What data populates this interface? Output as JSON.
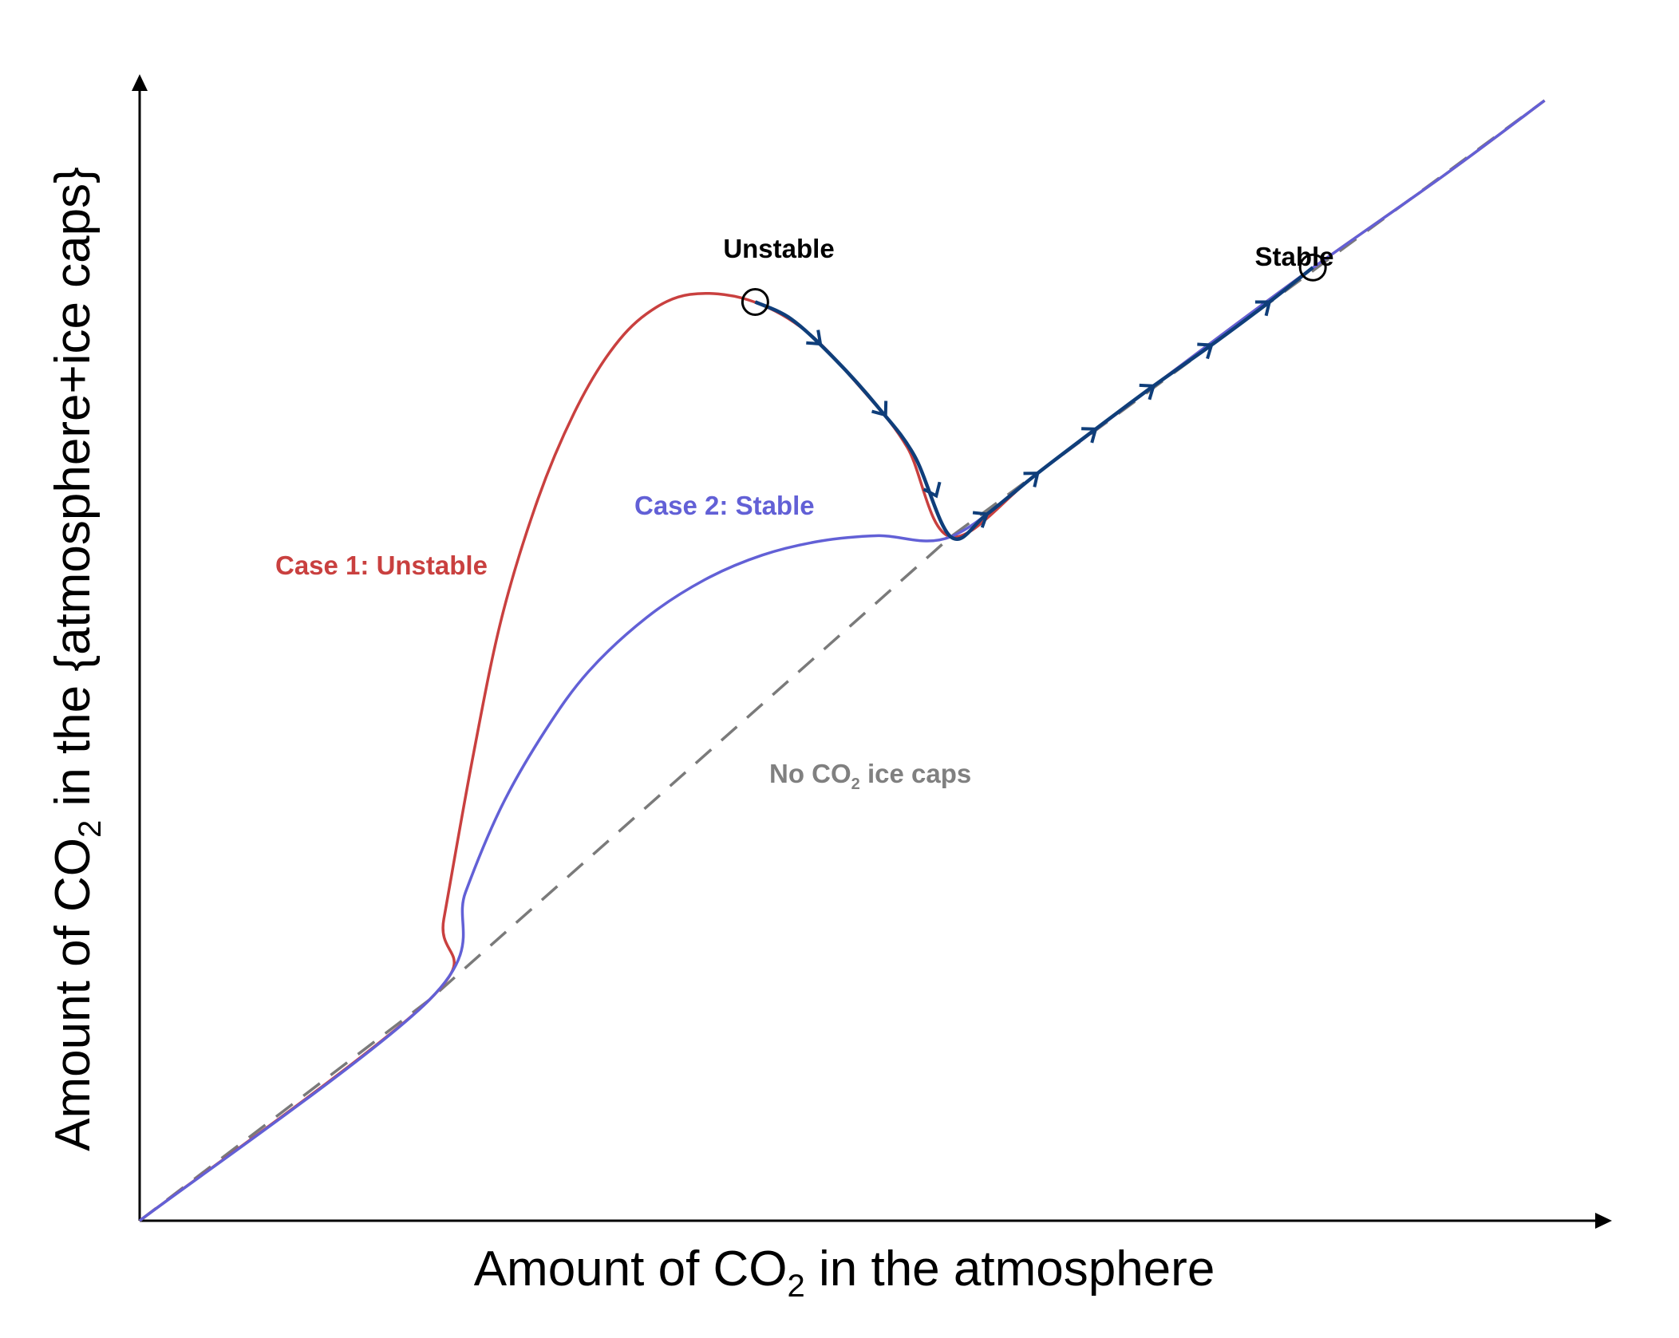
{
  "chart_data": {
    "type": "line",
    "title": "",
    "xlabel": {
      "pre": "Amount of CO",
      "sub": "2",
      "post": " in the atmosphere"
    },
    "ylabel": {
      "pre": "Amount of CO",
      "sub": "2",
      "post": " in the {atmosphere+ice caps}"
    },
    "xlim": [
      0,
      100
    ],
    "ylim": [
      0,
      100
    ],
    "grid": false,
    "series": [
      {
        "name": "Case 1: Unstable",
        "color": "#c9403f",
        "style": "solid",
        "points": [
          [
            0,
            0
          ],
          [
            20,
            20.5
          ],
          [
            21,
            28
          ],
          [
            23,
            43
          ],
          [
            25,
            56
          ],
          [
            27.5,
            67
          ],
          [
            30,
            75
          ],
          [
            32.5,
            80.7
          ],
          [
            35,
            84.2
          ],
          [
            38,
            86
          ],
          [
            42,
            85.5
          ],
          [
            46,
            82.6
          ],
          [
            50,
            77
          ],
          [
            53,
            71.8
          ],
          [
            56,
            63.5
          ],
          [
            62,
            69.4
          ],
          [
            70,
            77.5
          ],
          [
            80,
            87.5
          ],
          [
            90,
            97
          ],
          [
            97,
            104
          ]
        ]
      },
      {
        "name": "Case 2: Stable",
        "color": "#6260d6",
        "style": "solid",
        "points": [
          [
            0,
            0
          ],
          [
            20,
            20.5
          ],
          [
            22.5,
            30.5
          ],
          [
            25,
            38.5
          ],
          [
            28,
            45.5
          ],
          [
            31,
            51
          ],
          [
            35,
            56
          ],
          [
            39,
            59.5
          ],
          [
            43,
            61.8
          ],
          [
            47,
            63.1
          ],
          [
            51,
            63.6
          ],
          [
            56,
            63.5
          ],
          [
            62,
            69.4
          ],
          [
            70,
            77.5
          ],
          [
            80,
            87.5
          ],
          [
            90,
            97
          ],
          [
            97,
            104
          ]
        ]
      },
      {
        "name": "No CO2 ice caps",
        "label": {
          "pre": "No CO",
          "sub": "2",
          "post": " ice caps"
        },
        "color": "#7a7a7a",
        "style": "dashed",
        "points": [
          [
            0,
            0
          ],
          [
            20,
            20.5
          ],
          [
            56,
            63.5
          ],
          [
            97,
            104
          ]
        ]
      },
      {
        "name": "Trajectory",
        "color": "#0f3e7a",
        "style": "solid-arrows",
        "points": [
          [
            42.5,
            85.3
          ],
          [
            45,
            83.7
          ],
          [
            48,
            80
          ],
          [
            51,
            75.5
          ],
          [
            53.5,
            71
          ],
          [
            56,
            63.5
          ],
          [
            58.5,
            65.6
          ],
          [
            62,
            69.4
          ],
          [
            66,
            73.5
          ],
          [
            70,
            77.5
          ],
          [
            74,
            81.3
          ],
          [
            78,
            85.3
          ],
          [
            81,
            88.5
          ]
        ],
        "arrows_at": [
          [
            47,
            81.4
          ],
          [
            51.5,
            74.8
          ],
          [
            55,
            67.3
          ],
          [
            58.5,
            65.6
          ],
          [
            62,
            69.4
          ],
          [
            66,
            73.5
          ],
          [
            70,
            77.5
          ],
          [
            74,
            81.3
          ],
          [
            78,
            85.3
          ]
        ]
      }
    ],
    "points_of_interest": [
      {
        "label": "Unstable",
        "x": 42.5,
        "y": 85.3
      },
      {
        "label": "Stable",
        "x": 81,
        "y": 88.5
      }
    ],
    "annotations": [
      {
        "text": "Case 1: Unstable",
        "color": "#c9403f"
      },
      {
        "text": "Case 2: Stable",
        "color": "#6260d6"
      }
    ]
  }
}
